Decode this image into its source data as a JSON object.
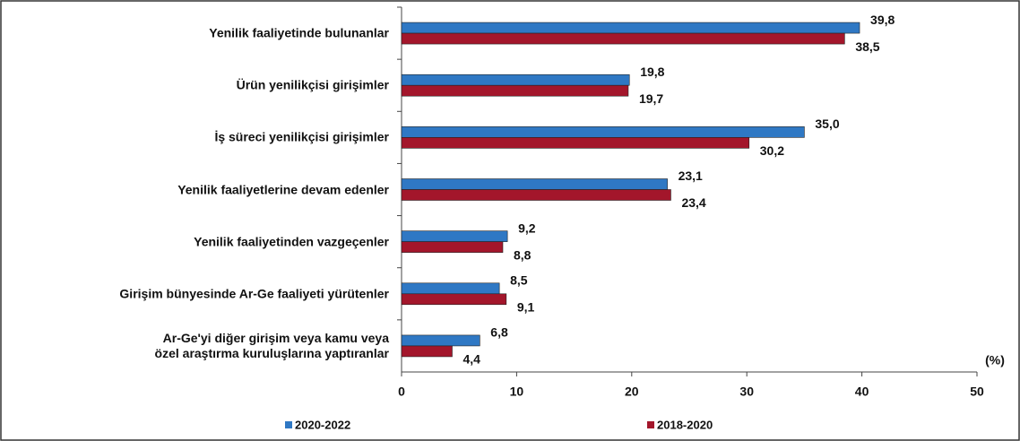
{
  "chart_data": {
    "type": "bar",
    "orientation": "horizontal",
    "categories": [
      "Yenilik faaliyetinde bulunanlar",
      "Ürün yenilikçisi girişimler",
      "İş süreci yenilikçisi girişimler",
      "Yenilik faaliyetlerine devam edenler",
      "Yenilik faaliyetinden vazgeçenler",
      "Girişim bünyesinde Ar-Ge faaliyeti yürütenler",
      "Ar-Ge'yi diğer girişim veya kamu veya\nözel araştırma kuruluşlarına yaptıranlar"
    ],
    "series": [
      {
        "name": "2020-2022",
        "color": "#2f78c4",
        "values": [
          39.8,
          19.8,
          35.0,
          23.1,
          9.2,
          8.5,
          6.8
        ],
        "value_labels": [
          "39,8",
          "19,8",
          "35,0",
          "23,1",
          "9,2",
          "8,5",
          "6,8"
        ]
      },
      {
        "name": "2018-2020",
        "color": "#a3162b",
        "values": [
          38.5,
          19.7,
          30.2,
          23.4,
          8.8,
          9.1,
          4.4
        ],
        "value_labels": [
          "38,5",
          "19,7",
          "30,2",
          "23,4",
          "8,8",
          "9,1",
          "4,4"
        ]
      }
    ],
    "xlim": [
      0,
      50
    ],
    "xticks": [
      0,
      10,
      20,
      30,
      40,
      50
    ],
    "xlabel": "(%)",
    "legend": "bottom"
  }
}
